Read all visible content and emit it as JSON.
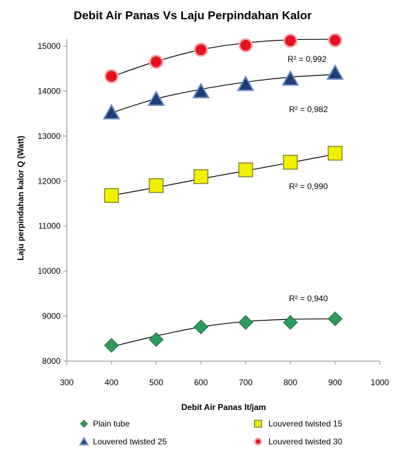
{
  "chart_data": {
    "type": "scatter",
    "title": "Debit  Air Panas Vs Laju Perpindahan Kalor",
    "xlabel": "Debit Air Panas lt/jam",
    "ylabel": "Laju perpindahan  kalor Q (Watt)",
    "xlim": [
      300,
      1000
    ],
    "ylim": [
      8000,
      15000
    ],
    "xticks": [
      300,
      400,
      500,
      600,
      700,
      800,
      900,
      1000
    ],
    "yticks": [
      8000,
      9000,
      10000,
      11000,
      12000,
      13000,
      14000,
      15000
    ],
    "x_tick_labels": [
      "300",
      "400",
      "500",
      "600",
      "700",
      "800",
      "900",
      "1000"
    ],
    "y_tick_labels": [
      "8000",
      "9000",
      "10000",
      "11000",
      "12000",
      "13000",
      "14000",
      "15000"
    ],
    "grid": false,
    "legend_position": "bottom",
    "x": [
      400,
      500,
      600,
      700,
      800,
      900
    ],
    "series": [
      {
        "name": "Plain tube",
        "marker": "diamond",
        "color": "#2e9a5c",
        "values": [
          8350,
          8480,
          8760,
          8860,
          8860,
          8940
        ],
        "trend": [
          8320,
          8560,
          8760,
          8880,
          8930,
          8940
        ],
        "r2": "R² = 0,940"
      },
      {
        "name": "Louvered twisted 15",
        "marker": "square",
        "color": "#f0f000",
        "values": [
          11680,
          11900,
          12100,
          12250,
          12420,
          12620
        ],
        "trend": [
          11680,
          11860,
          12050,
          12230,
          12410,
          12600
        ],
        "r2": "R² = 0,990"
      },
      {
        "name": "Louvered twisted 25",
        "marker": "triangle",
        "color": "#1f3f78",
        "values": [
          13520,
          13820,
          13990,
          14150,
          14270,
          14400
        ],
        "trend": [
          13520,
          13830,
          14040,
          14200,
          14310,
          14370
        ],
        "r2": "R² = 0,982"
      },
      {
        "name": "Louvered twisted 30",
        "marker": "circle",
        "color": "#e8101c",
        "values": [
          14330,
          14650,
          14920,
          15020,
          15120,
          15130
        ],
        "trend": [
          14320,
          14660,
          14920,
          15070,
          15140,
          15150
        ],
        "r2": "R² = 0,992"
      }
    ]
  }
}
